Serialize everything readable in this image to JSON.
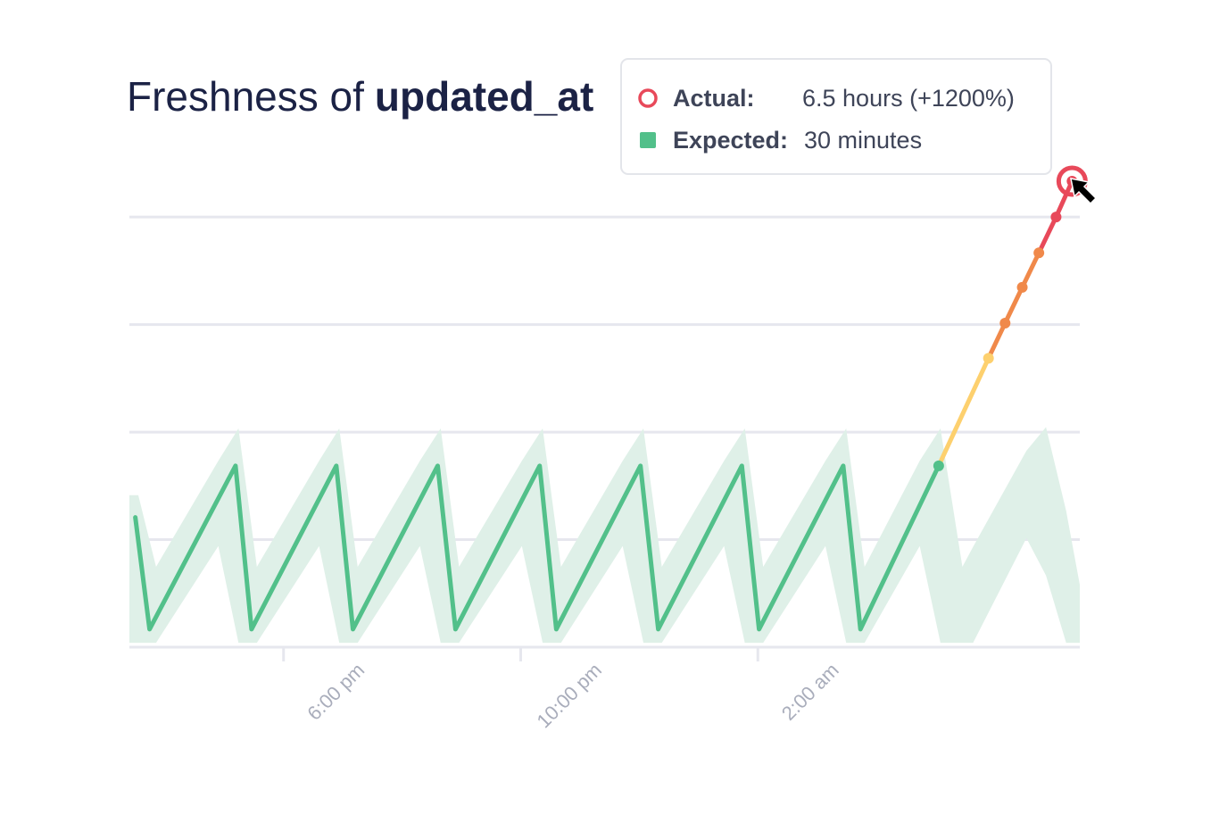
{
  "chart_data": {
    "type": "line",
    "title": "Freshness of",
    "title_field": "updated_at",
    "xlim": [
      15.4,
      31.43
    ],
    "ylim": [
      0,
      6.5
    ],
    "xticks": [
      {
        "value": 18,
        "label": "6:00 pm"
      },
      {
        "value": 22,
        "label": "10:00 pm"
      },
      {
        "value": 26,
        "label": "2:00 am"
      }
    ],
    "ygrid": [
      0,
      1.5,
      3,
      4.5,
      6
    ],
    "grid": true,
    "band": {
      "color": "#dff0e8",
      "x": [
        15.4,
        15.55,
        15.85,
        16.9,
        17.24,
        17.55,
        18.6,
        18.94,
        19.25,
        20.3,
        20.65,
        20.96,
        22.02,
        22.37,
        22.68,
        23.72,
        24.07,
        24.38,
        25.43,
        25.78,
        26.09,
        27.14,
        27.49,
        27.8,
        28.73,
        29.08,
        29.45,
        29.63,
        30.53,
        30.86,
        31.2,
        31.43
      ],
      "upper": [
        2.12,
        2.12,
        1.12,
        2.6,
        3.05,
        1.12,
        2.6,
        3.05,
        1.12,
        2.6,
        3.05,
        1.12,
        2.6,
        3.05,
        1.12,
        2.6,
        3.05,
        1.12,
        2.6,
        3.05,
        1.12,
        2.6,
        3.05,
        1.12,
        2.6,
        3.05,
        1.12,
        1.4,
        2.74,
        3.07,
        1.9,
        0.87
      ],
      "lower": [
        0.06,
        0.06,
        0.06,
        1.41,
        0.06,
        0.06,
        1.41,
        0.06,
        0.06,
        1.41,
        0.06,
        0.06,
        1.41,
        0.06,
        0.06,
        1.41,
        0.06,
        0.06,
        1.41,
        0.06,
        0.06,
        1.41,
        0.06,
        0.06,
        1.41,
        0.06,
        0.06,
        0.06,
        1.52,
        1.0,
        0.06,
        0.06
      ]
    },
    "series": [
      {
        "name": "Expected",
        "color": "#52c08a",
        "x": [
          15.5,
          15.74,
          17.19,
          17.46,
          18.89,
          19.17,
          20.6,
          20.9,
          22.32,
          22.6,
          24.02,
          24.32,
          25.73,
          26.02,
          27.44,
          27.73,
          29.05
        ],
        "values": [
          1.81,
          0.25,
          2.53,
          0.25,
          2.53,
          0.25,
          2.53,
          0.25,
          2.53,
          0.25,
          2.53,
          0.25,
          2.53,
          0.25,
          2.53,
          0.25,
          2.53
        ]
      },
      {
        "name": "Actual",
        "color": "#e8495a",
        "x": [
          29.05,
          29.89,
          30.17,
          30.46,
          30.74,
          31.03,
          31.3
        ],
        "values": [
          2.53,
          4.03,
          4.52,
          5.02,
          5.5,
          6.0,
          6.5
        ],
        "segment_colors": [
          "#fdd06e",
          "#f0894a",
          "#f0894a",
          "#f0894a",
          "#e8495a",
          "#e8495a"
        ],
        "point_colors": [
          "#52c08a",
          "#fdd06e",
          "#f0894a",
          "#f0894a",
          "#f0894a",
          "#e8495a",
          "#e8495a"
        ]
      }
    ],
    "tooltip": [
      {
        "label": "Actual:",
        "value": "6.5 hours (+1200%)"
      },
      {
        "label": "Expected:",
        "value": "30 minutes"
      }
    ]
  }
}
